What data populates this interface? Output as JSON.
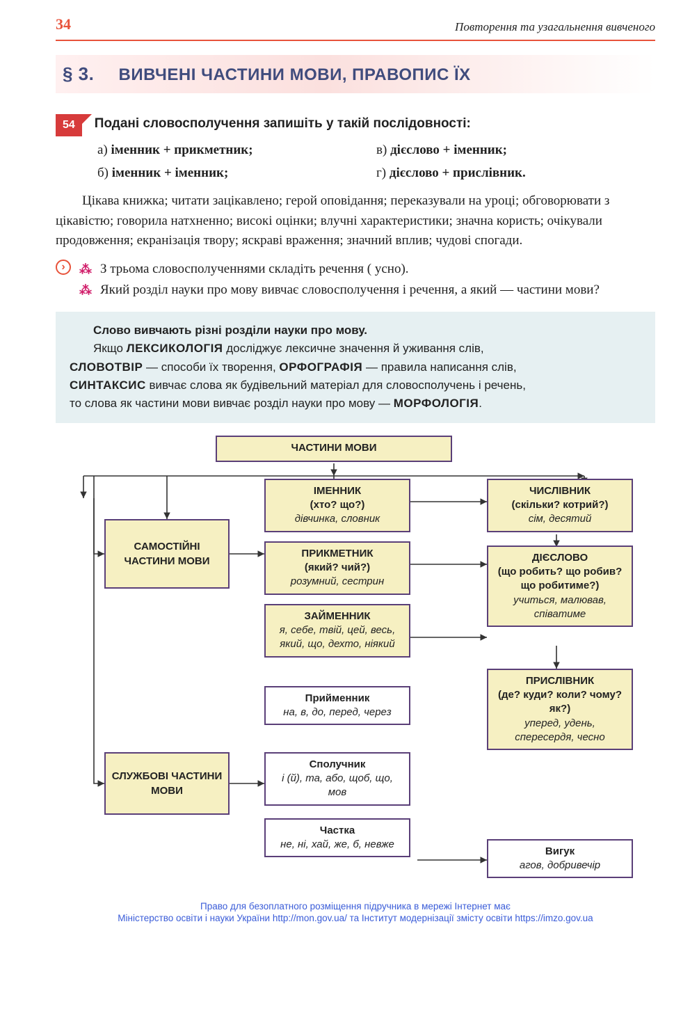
{
  "page_number": "34",
  "running_head": "Повторення та узагальнення  вивченого",
  "section": {
    "num": "§ 3.",
    "title": "ВИВЧЕНІ  ЧАСТИНИ  МОВИ,  ПРАВОПИС  ЇХ"
  },
  "exercise": {
    "num": "54",
    "title": "Подані словосполучення запишіть у такій послідовності:",
    "options": {
      "a": "а) іменник + прикметник;",
      "b": "б) іменник + іменник;",
      "c": "в) дієслово + іменник;",
      "d": "г) дієслово + прислівник."
    },
    "body": "Цікава книжка; читати зацікавлено; герой оповідання; переказували на уроці; обговорювати з цікавістю; говорила натхненно; високі оцінки; влучні характеристики; значна користь; очікували продовження; екранізація твору; яскраві враження; значний вплив; чудові спогади.",
    "tasks": [
      "З трьома словосполученнями складіть речення ( усно).",
      "Який розділ науки про мову вивчає словосполучення і речення, а який — частини мови?"
    ]
  },
  "info": {
    "l1": "Слово вивчають різні розділи науки про мову.",
    "l2a": "Якщо ",
    "l2b": "ЛЕКСИКОЛОГІЯ",
    "l2c": " досліджує лексичне значення й уживання слів,",
    "l3a": "СЛОВОТВІР",
    "l3b": " — способи їх творення, ",
    "l3c": "ОРФОГРАФІЯ",
    "l3d": " — правила написання слів,",
    "l4a": "СИНТАКСИС",
    "l4b": " вивчає слова як будівельний матеріал для словосполучень і речень,",
    "l5a": "то слова як частини мови вивчає розділ науки про мову — ",
    "l5b": "МОРФОЛОГІЯ",
    "l5c": "."
  },
  "diagram": {
    "colors": {
      "border": "#5a3f78",
      "fill": "#f6f0c2",
      "arrow": "#333333"
    },
    "root": {
      "title": "ЧАСТИНИ МОВИ"
    },
    "left": [
      {
        "title": "САМОСТІЙНІ ЧАСТИНИ МОВИ"
      },
      {
        "title": "СЛУЖБОВІ ЧАСТИНИ МОВИ"
      }
    ],
    "mid_self": [
      {
        "title": "ІМЕННИК",
        "q": "(хто? що?)",
        "ex": "дівчинка, словник"
      },
      {
        "title": "ПРИКМЕТНИК",
        "q": "(який? чий?)",
        "ex": "розумний, сестрин"
      },
      {
        "title": "ЗАЙМЕННИК",
        "q": "",
        "ex": "я, себе, твій, цей, весь, який, що, дехто, ніякий"
      }
    ],
    "mid_serv": [
      {
        "title": "Прийменник",
        "ex": "на, в, до, перед, через"
      },
      {
        "title": "Сполучник",
        "ex": "і (й), та, або, щоб, що, мов"
      },
      {
        "title": "Частка",
        "ex": "не, ні, хай, же, б, невже"
      }
    ],
    "right": [
      {
        "title": "ЧИСЛІВНИК",
        "q": "(скільки? котрий?)",
        "ex": "сім, десятий"
      },
      {
        "title": "ДІЄСЛОВО",
        "q": "(що робить? що робив? що робитиме?)",
        "ex": "учиться, малював, співатиме"
      },
      {
        "title": "ПРИСЛІВНИК",
        "q": "(де? куди? коли? чому? як?)",
        "ex": "уперед, удень, спересердя, чесно"
      },
      {
        "title": "Вигук",
        "ex": "агов, добривечір"
      }
    ]
  },
  "footer": {
    "l1": "Право для безоплатного розміщення підручника в мережі Інтернет має",
    "l2a": "Міністерство освіти і науки України ",
    "l2b": "http://mon.gov.ua/",
    "l2c": " та Інститут модернізації змісту освіти ",
    "l2d": "https://imzo.gov.ua"
  }
}
